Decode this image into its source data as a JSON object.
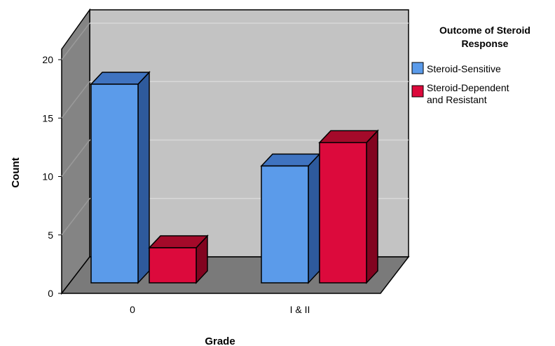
{
  "chart_data": {
    "type": "bar",
    "style": "3d-clustered",
    "categories": [
      "0",
      "I & II"
    ],
    "series": [
      {
        "name": "Steroid-Sensitive",
        "values": [
          17,
          10
        ],
        "color": "#5b9bea",
        "top_color": "#3f73c0",
        "side_color": "#2e5a9c"
      },
      {
        "name": "Steroid-Dependent and Resistant",
        "values": [
          3,
          12
        ],
        "color": "#dc0a3c",
        "top_color": "#a40a2a",
        "side_color": "#820420"
      }
    ],
    "xlabel": "Grade",
    "ylabel": "Count",
    "ylim": [
      0,
      20
    ],
    "yticks": [
      0,
      5,
      10,
      15,
      20
    ],
    "grid": true,
    "legend": {
      "title_lines": [
        "Outcome of Steroid",
        "Response"
      ],
      "placement": "top-right",
      "entries": [
        {
          "lines": [
            "Steroid-Sensitive"
          ]
        },
        {
          "lines": [
            "Steroid-Dependent",
            "and Resistant"
          ]
        }
      ]
    },
    "colors": {
      "back_wall": "#c3c3c3",
      "left_wall": "#848484",
      "floor": "#7a7a7a",
      "grid": "#d8d8d8"
    }
  }
}
